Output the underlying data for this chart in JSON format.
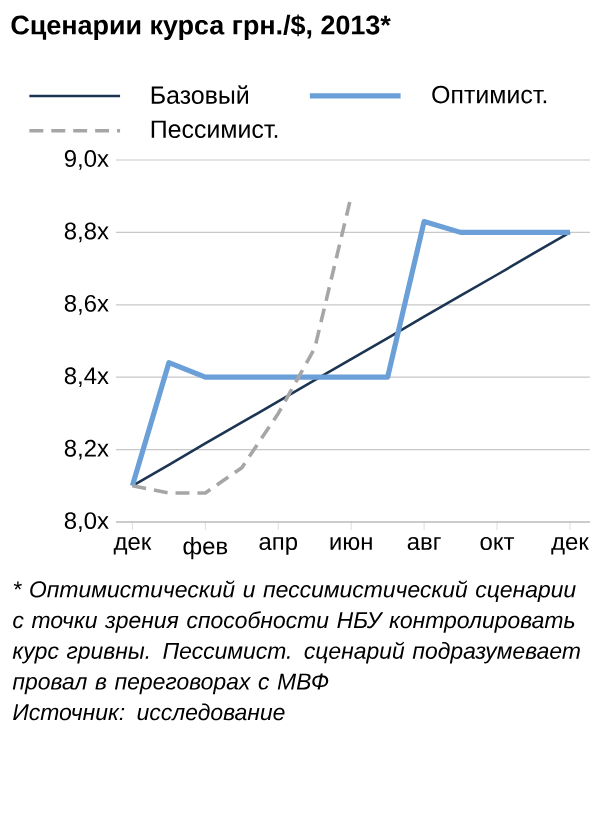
{
  "chart_data": {
    "type": "line",
    "title": "Сценарии курса грн./$, 2013*",
    "categories": [
      "дек",
      null,
      "фев",
      null,
      "апр",
      null,
      "июн",
      null,
      "авг",
      null,
      "окт",
      null,
      "дек"
    ],
    "series": [
      {
        "name": "Базовый",
        "color": "#1c3553",
        "values": [
          8.1,
          8.158,
          8.217,
          8.275,
          8.333,
          8.392,
          8.45,
          8.508,
          8.567,
          8.625,
          8.683,
          8.742,
          8.8
        ]
      },
      {
        "name": "Оптимист.",
        "color": "#6a9fd8",
        "values": [
          8.1,
          8.44,
          8.4,
          8.4,
          8.4,
          8.4,
          8.4,
          8.4,
          8.83,
          8.8,
          8.8,
          8.8,
          8.8
        ]
      },
      {
        "name": "Пессимист.",
        "color": "#a6a6a6",
        "line_style": "dashed",
        "values": [
          8.1,
          8.08,
          8.08,
          8.15,
          8.3,
          8.48,
          8.9,
          null,
          null,
          null,
          null,
          null,
          null
        ]
      }
    ],
    "ylim": [
      8.0,
      9.0
    ],
    "yticks": [
      {
        "value": 8.0,
        "label": "8,0x"
      },
      {
        "value": 8.2,
        "label": "8,2x"
      },
      {
        "value": 8.4,
        "label": "8,4x"
      },
      {
        "value": 8.6,
        "label": "8,6x"
      },
      {
        "value": 8.8,
        "label": "8,8x"
      },
      {
        "value": 9.0,
        "label": "9,0x"
      }
    ],
    "grid": "y",
    "legend": "top",
    "marker": "none",
    "line_style": "solid",
    "annotations": [
      "* Оптимистический и пессимистический сценарии с точки зрения способности НБУ контролировать курс гривны. Пессимист. сценарий подразумевает провал в переговорах с МВФ",
      "Источник: исследование"
    ]
  }
}
